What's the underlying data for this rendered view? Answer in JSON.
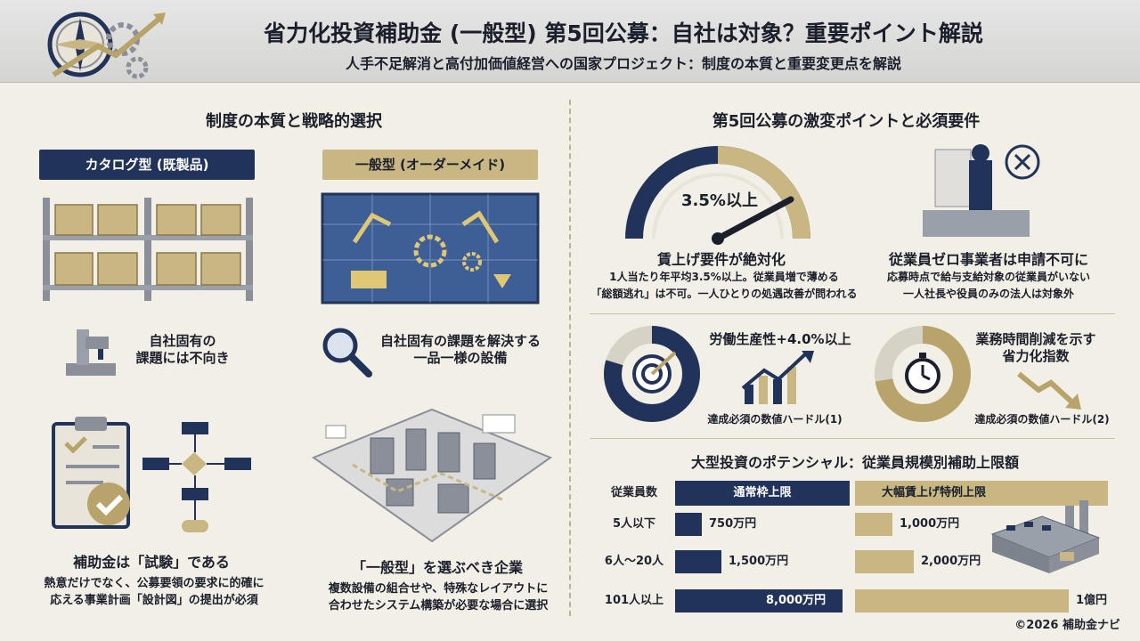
{
  "header": {
    "title": "省力化投資補助金 (一般型) 第5回公募：自社は対象？重要ポイント解説",
    "subtitle": "人手不足解消と高付加価値経営への国家プロジェクト：制度の本質と重要変更点を解説"
  },
  "left": {
    "section_title": "制度の本質と戦略的選択",
    "catalog_label": "カタログ型 (既製品)",
    "general_label": "一般型 (オーダーメイド)",
    "catalog_note": [
      "自社固有の",
      "課題には不向き"
    ],
    "general_note": [
      "自社固有の課題を解決する",
      "一品一様の設備"
    ],
    "trial_title": "補助金は「試験」である",
    "trial_text": [
      "熱意だけでなく、公募要領の要求に的確に",
      "応える事業計画「設計図」の提出が必須"
    ],
    "choose_title": "「一般型」を選ぶべき企業",
    "choose_text": [
      "複数設備の組合せや、特殊なレイアウトに",
      "合わせたシステム構築が必要な場合に選択"
    ]
  },
  "right": {
    "section_title": "第5回公募の激変ポイントと必須要件",
    "gauge_value": "3.5%以上",
    "wage_title": "賃上げ要件が絶対化",
    "wage_text": [
      "1人当たり年平均3.5%以上。従業員増で薄める",
      "「総額逃れ」は不可。一人ひとりの処遇改善が問われる"
    ],
    "zero_title": "従業員ゼロ事業者は申請不可に",
    "zero_text": [
      "応募時点で給与支給対象の従業員がいない",
      "一人社長や役員のみの法人は対象外"
    ],
    "prod_title": "労働生産性+4.0%以上",
    "prod_caption": "達成必須の数値ハードル(1)",
    "time_title": [
      "業務時間削減を示す",
      "省力化指数"
    ],
    "time_caption": "達成必須の数値ハードル(2)",
    "table_title": "大型投資のポテンシャル：従業員規模別補助上限額"
  },
  "chart_data": {
    "type": "bar",
    "columns": [
      "従業員数",
      "通常枠上限",
      "大幅賃上げ特例上限"
    ],
    "categories": [
      "5人以下",
      "6人〜20人",
      "101人以上"
    ],
    "series": [
      {
        "name": "通常枠上限",
        "values": [
          750,
          1500,
          8000
        ],
        "labels": [
          "750万円",
          "1,500万円",
          "8,000万円"
        ]
      },
      {
        "name": "大幅賃上げ特例上限",
        "values": [
          1000,
          2000,
          10000
        ],
        "labels": [
          "1,000万円",
          "2,000万円",
          "1億円"
        ]
      }
    ],
    "unit": "万円",
    "colors": {
      "normal": "#22335a",
      "special": "#c8b783"
    }
  },
  "footer": {
    "copyright": "©2026 補助金ナビ"
  }
}
